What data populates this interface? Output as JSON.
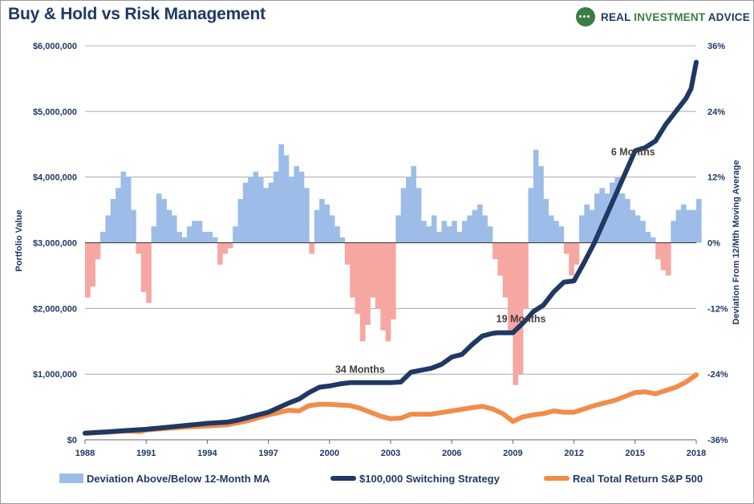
{
  "header": {
    "title": "Buy & Hold vs Risk Management",
    "brand": "REAL INVESTMENT ADVICE",
    "brand_accent": "INVESTMENT"
  },
  "colors": {
    "title": "#1f3864",
    "strategy": "#1f3864",
    "sp500": "#f28c4a",
    "dev_pos": "#9dbde8",
    "dev_neg": "#f6a7a2",
    "grid": "#9a9a9a",
    "brand_green": "#3a7d44"
  },
  "chart_data": {
    "type": "line",
    "title": "Buy & Hold vs Risk Management",
    "xlabel": "",
    "ylabel": "Portfolio Value",
    "y2label": "Deviation From 12/Mth Moving Average",
    "xlim": [
      1988,
      2018
    ],
    "ylim": [
      0,
      6000000
    ],
    "y2lim": [
      -36,
      36
    ],
    "x_ticks": [
      "1988",
      "1991",
      "1994",
      "1997",
      "2000",
      "2003",
      "2006",
      "2009",
      "2012",
      "2015",
      "2018"
    ],
    "y_ticks": [
      "$0",
      "$1,000,000",
      "$2,000,000",
      "$3,000,000",
      "$4,000,000",
      "$5,000,000",
      "$6,000,000"
    ],
    "y2_ticks": [
      "-36%",
      "-24%",
      "-12%",
      "0%",
      "12%",
      "24%",
      "36%"
    ],
    "grid": "horizontal",
    "legend_position": "bottom",
    "series": [
      {
        "name": "Deviation Above/Below 12-Month MA",
        "type": "bar",
        "axis": "right",
        "x": [
          1988.0,
          1988.25,
          1988.5,
          1988.75,
          1989.0,
          1989.25,
          1989.5,
          1989.75,
          1990.0,
          1990.25,
          1990.5,
          1990.75,
          1991.0,
          1991.25,
          1991.5,
          1991.75,
          1992.0,
          1992.25,
          1992.5,
          1992.75,
          1993.0,
          1993.25,
          1993.5,
          1993.75,
          1994.0,
          1994.25,
          1994.5,
          1994.75,
          1995.0,
          1995.25,
          1995.5,
          1995.75,
          1996.0,
          1996.25,
          1996.5,
          1996.75,
          1997.0,
          1997.25,
          1997.5,
          1997.75,
          1998.0,
          1998.25,
          1998.5,
          1998.75,
          1999.0,
          1999.25,
          1999.5,
          1999.75,
          2000.0,
          2000.25,
          2000.5,
          2000.75,
          2001.0,
          2001.25,
          2001.5,
          2001.75,
          2002.0,
          2002.25,
          2002.5,
          2002.75,
          2003.0,
          2003.25,
          2003.5,
          2003.75,
          2004.0,
          2004.25,
          2004.5,
          2004.75,
          2005.0,
          2005.25,
          2005.5,
          2005.75,
          2006.0,
          2006.25,
          2006.5,
          2006.75,
          2007.0,
          2007.25,
          2007.5,
          2007.75,
          2008.0,
          2008.25,
          2008.5,
          2008.75,
          2009.0,
          2009.25,
          2009.5,
          2009.75,
          2010.0,
          2010.25,
          2010.5,
          2010.75,
          2011.0,
          2011.25,
          2011.5,
          2011.75,
          2012.0,
          2012.25,
          2012.5,
          2012.75,
          2013.0,
          2013.25,
          2013.5,
          2013.75,
          2014.0,
          2014.25,
          2014.5,
          2014.75,
          2015.0,
          2015.25,
          2015.5,
          2015.75,
          2016.0,
          2016.25,
          2016.5,
          2016.75,
          2017.0,
          2017.25,
          2017.5,
          2017.75,
          2018.0
        ],
        "values": [
          -10,
          -8,
          -3,
          2,
          5,
          8,
          10,
          13,
          12,
          6,
          -2,
          -9,
          -11,
          3,
          9,
          8,
          6,
          5,
          2,
          1,
          3,
          4,
          4,
          2,
          2,
          1,
          -4,
          -2,
          -1,
          3,
          8,
          11,
          12,
          13,
          12,
          10,
          11,
          13,
          18,
          16,
          12,
          14,
          13,
          10,
          -2,
          6,
          8,
          7,
          5,
          3,
          1,
          -4,
          -10,
          -13,
          -18,
          -15,
          -10,
          -12,
          -16,
          -18,
          -14,
          5,
          10,
          12,
          14,
          10,
          4,
          3,
          5,
          2,
          4,
          3,
          4,
          2,
          4,
          5,
          6,
          7,
          5,
          3,
          -3,
          -6,
          -10,
          -16,
          -26,
          -24,
          -12,
          10,
          17,
          14,
          8,
          5,
          4,
          3,
          -2,
          -6,
          -4,
          5,
          7,
          6,
          9,
          10,
          9,
          11,
          12,
          9,
          8,
          6,
          5,
          4,
          2,
          1,
          -3,
          -5,
          -6,
          4,
          6,
          7,
          6,
          6,
          8
        ]
      },
      {
        "name": "$100,000 Switching Strategy",
        "type": "line",
        "axis": "left",
        "x": [
          1988.0,
          1989.0,
          1990.0,
          1991.0,
          1992.0,
          1993.0,
          1994.0,
          1995.0,
          1995.5,
          1996.0,
          1997.0,
          1998.0,
          1998.5,
          1999.0,
          1999.5,
          2000.0,
          2000.5,
          2001.0,
          2002.0,
          2003.0,
          2003.5,
          2004.0,
          2004.5,
          2005.0,
          2005.5,
          2006.0,
          2006.5,
          2007.0,
          2007.5,
          2008.0,
          2008.25,
          2009.0,
          2009.5,
          2009.75,
          2010.0,
          2010.5,
          2011.0,
          2011.5,
          2012.0,
          2012.5,
          2013.0,
          2013.5,
          2014.0,
          2014.5,
          2015.0,
          2015.5,
          2016.0,
          2016.5,
          2017.0,
          2017.5,
          2017.75,
          2018.0
        ],
        "values": [
          100000,
          120000,
          140000,
          160000,
          190000,
          220000,
          250000,
          270000,
          300000,
          340000,
          420000,
          560000,
          620000,
          720000,
          800000,
          820000,
          850000,
          870000,
          870000,
          870000,
          880000,
          1030000,
          1060000,
          1090000,
          1150000,
          1260000,
          1300000,
          1450000,
          1580000,
          1620000,
          1630000,
          1630000,
          1780000,
          1860000,
          1950000,
          2050000,
          2250000,
          2400000,
          2420000,
          2700000,
          3000000,
          3350000,
          3700000,
          4050000,
          4400000,
          4450000,
          4550000,
          4800000,
          5000000,
          5200000,
          5350000,
          5750000
        ]
      },
      {
        "name": "Real Total Return S&P 500",
        "type": "line",
        "axis": "left",
        "x": [
          1988.0,
          1989.0,
          1990.0,
          1990.75,
          1991.0,
          1992.0,
          1993.0,
          1994.0,
          1995.0,
          1996.0,
          1997.0,
          1998.0,
          1998.5,
          1999.0,
          1999.5,
          2000.0,
          2000.5,
          2001.0,
          2001.5,
          2002.0,
          2002.5,
          2003.0,
          2003.5,
          2004.0,
          2005.0,
          2006.0,
          2007.0,
          2007.5,
          2008.0,
          2008.5,
          2009.0,
          2009.5,
          2010.0,
          2010.5,
          2011.0,
          2011.5,
          2012.0,
          2013.0,
          2014.0,
          2014.5,
          2015.0,
          2015.5,
          2016.0,
          2016.5,
          2017.0,
          2017.5,
          2018.0
        ],
        "values": [
          100000,
          115000,
          135000,
          125000,
          150000,
          175000,
          195000,
          210000,
          230000,
          290000,
          380000,
          450000,
          440000,
          520000,
          540000,
          540000,
          530000,
          520000,
          480000,
          420000,
          360000,
          320000,
          330000,
          390000,
          390000,
          440000,
          490000,
          510000,
          470000,
          400000,
          280000,
          350000,
          380000,
          400000,
          440000,
          420000,
          420000,
          520000,
          600000,
          660000,
          720000,
          730000,
          700000,
          750000,
          800000,
          880000,
          990000
        ]
      }
    ],
    "annotations": [
      {
        "text": "34 Months",
        "x": 2001.5,
        "y": 1020000
      },
      {
        "text": "19 Months",
        "x": 2009.4,
        "y": 1790000
      },
      {
        "text": "6 Months",
        "x": 2014.9,
        "y": 4330000
      }
    ]
  }
}
